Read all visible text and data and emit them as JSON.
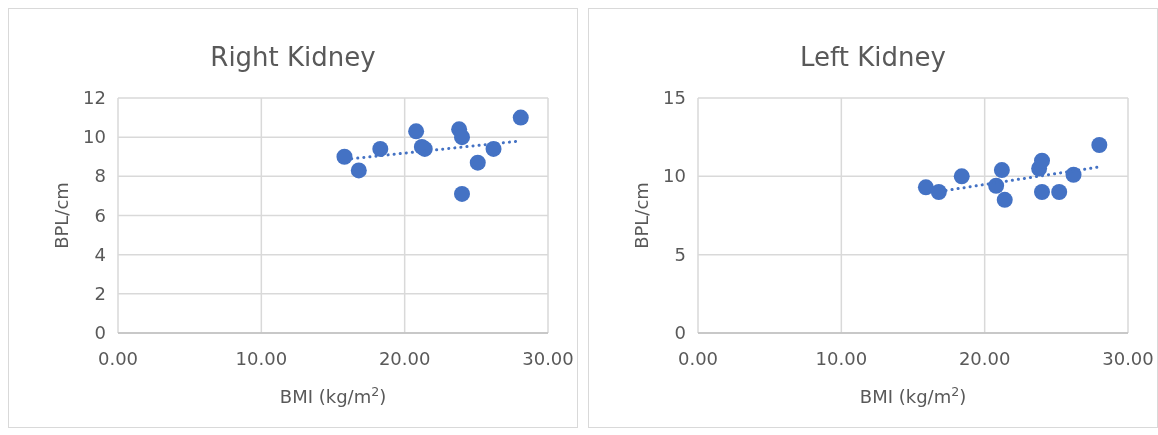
{
  "chart_data": [
    {
      "type": "scatter",
      "title": "Right Kidney",
      "xlabel": "BMI (kg/m$^{2}$)",
      "ylabel": "BPL/cm",
      "xlim": [
        0,
        30
      ],
      "xticks": [
        {
          "value": 0,
          "label": "0.00"
        },
        {
          "value": 10,
          "label": "10.00"
        },
        {
          "value": 20,
          "label": "20.00"
        },
        {
          "value": 30,
          "label": "30.00"
        }
      ],
      "ylim": [
        0,
        12
      ],
      "yticks": [
        0,
        2,
        4,
        6,
        8,
        10,
        12
      ],
      "grid": true,
      "series": [
        {
          "color": "#4472c4",
          "marker": "circle",
          "x": [
            15.8,
            16.8,
            18.3,
            20.8,
            21.2,
            21.4,
            23.8,
            24.0,
            24.0,
            25.1,
            26.2,
            28.1
          ],
          "values": [
            9.0,
            8.3,
            9.4,
            10.3,
            9.5,
            9.4,
            10.4,
            10.0,
            7.1,
            8.7,
            9.4,
            11.0
          ]
        },
        {
          "type": "line",
          "color": "#4472c4",
          "line_style": "dotted",
          "x": [
            16.3,
            28.0
          ],
          "values": [
            8.9,
            9.8
          ]
        }
      ]
    },
    {
      "type": "scatter",
      "title": "Left Kidney",
      "xlabel": "BMI (kg/m$^{2}$)",
      "ylabel": "BPL/cm",
      "xlim": [
        0,
        30
      ],
      "xticks": [
        {
          "value": 0,
          "label": "0.00"
        },
        {
          "value": 10,
          "label": "10.00"
        },
        {
          "value": 20,
          "label": "20.00"
        },
        {
          "value": 30,
          "label": "30.00"
        }
      ],
      "ylim": [
        0,
        15
      ],
      "yticks": [
        0,
        5,
        10,
        15
      ],
      "grid": true,
      "series": [
        {
          "color": "#4472c4",
          "marker": "circle",
          "x": [
            15.9,
            16.8,
            18.4,
            20.8,
            21.2,
            21.4,
            23.8,
            24.0,
            24.0,
            25.2,
            26.2,
            28.0
          ],
          "values": [
            9.3,
            9.0,
            10.0,
            9.4,
            10.4,
            8.5,
            10.5,
            11.0,
            9.0,
            9.0,
            10.1,
            12.0
          ]
        },
        {
          "type": "line",
          "color": "#4472c4",
          "line_style": "dotted",
          "x": [
            17.3,
            28.0
          ],
          "values": [
            9.1,
            10.6
          ]
        }
      ]
    }
  ]
}
